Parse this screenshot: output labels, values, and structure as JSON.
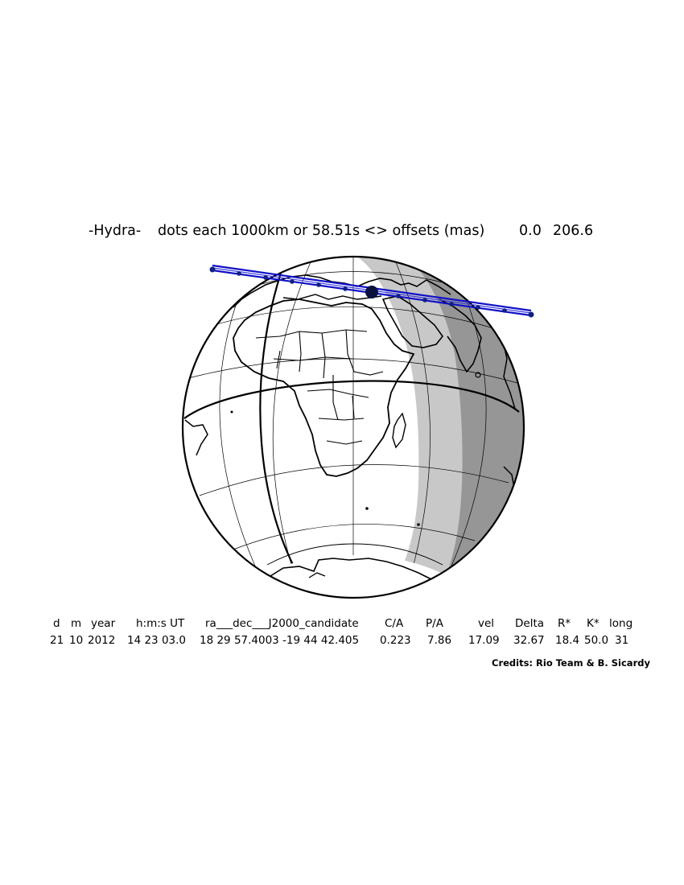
{
  "title": {
    "object": "-Hydra-",
    "description": "dots each 1000km or 58.51s <> offsets (mas)",
    "offset_ra": "0.0",
    "offset_dec": "206.6"
  },
  "table": {
    "columns": [
      "d",
      "m",
      "year",
      "h:m:s UT",
      "ra___dec___J2000_candidate",
      "C/A",
      "P/A",
      "vel",
      "Delta",
      "R*",
      "K*",
      "long"
    ],
    "values": [
      "21",
      "10",
      "2012",
      "14 23 03.0",
      "18 29 57.4003 -19 44 42.405",
      "0.223",
      "7.86",
      "17.09",
      "32.67",
      "18.4",
      "50.0",
      "31"
    ]
  },
  "credits": "Credits: Rio Team & B. Sicardy",
  "colors": {
    "track": "#1010c8",
    "track_dots": "#102080",
    "twilight": "#c8c8c8",
    "night": "#969696",
    "outline": "#000000"
  }
}
